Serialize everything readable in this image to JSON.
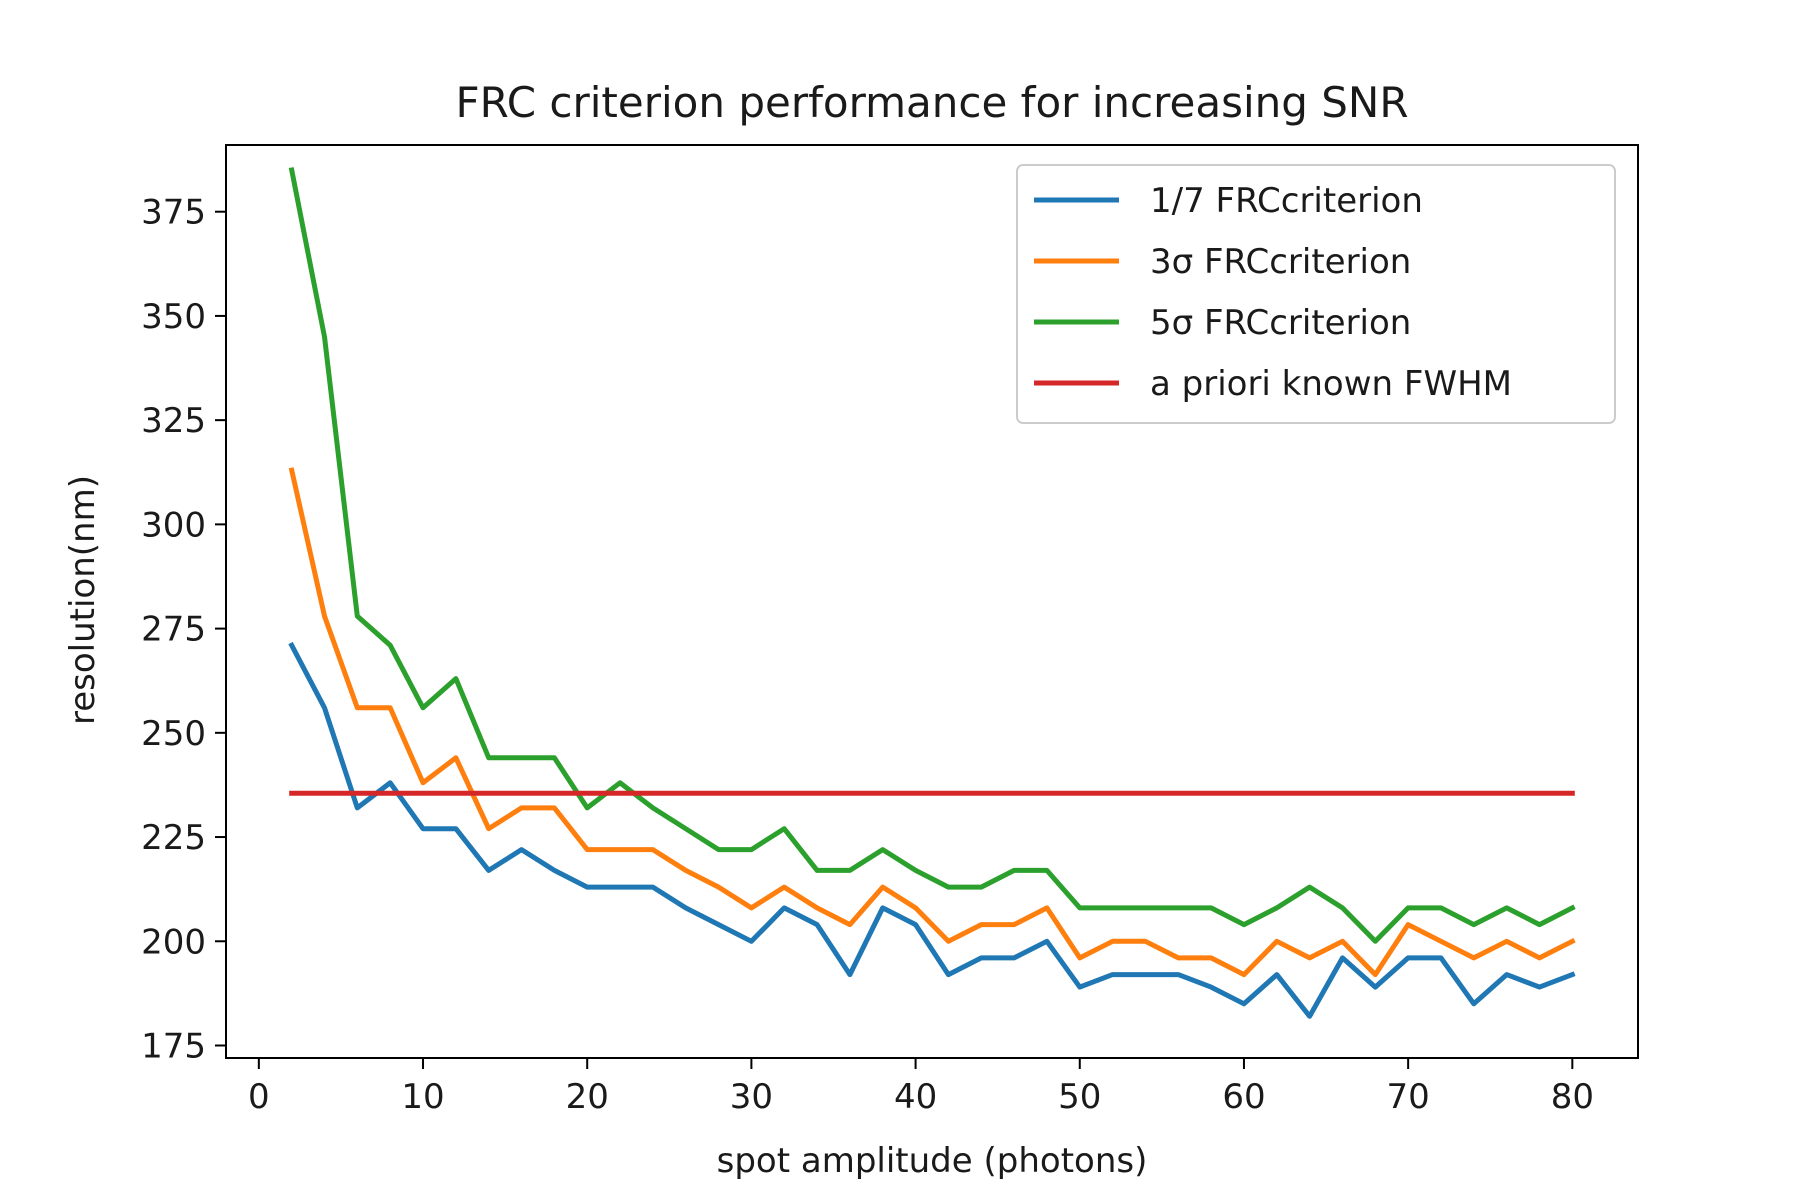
{
  "chart_data": {
    "type": "line",
    "title": "FRC criterion performance for increasing SNR",
    "xlabel": "spot amplitude (photons)",
    "ylabel": "resolution(nm)",
    "xlim": [
      -2,
      84
    ],
    "ylim": [
      172,
      391
    ],
    "xticks": [
      0,
      10,
      20,
      30,
      40,
      50,
      60,
      70,
      80
    ],
    "yticks": [
      175,
      200,
      225,
      250,
      275,
      300,
      325,
      350,
      375
    ],
    "grid": false,
    "legend_position": "top-right",
    "x": [
      2,
      4,
      6,
      8,
      10,
      12,
      14,
      16,
      18,
      20,
      22,
      24,
      26,
      28,
      30,
      32,
      34,
      36,
      38,
      40,
      42,
      44,
      46,
      48,
      50,
      52,
      54,
      56,
      58,
      60,
      62,
      64,
      66,
      68,
      70,
      72,
      74,
      76,
      78,
      80
    ],
    "series": [
      {
        "name": "1/7 FRCcriterion",
        "color": "#1f77b4",
        "values": [
          271,
          256,
          232,
          238,
          227,
          227,
          217,
          222,
          217,
          213,
          213,
          213,
          208,
          204,
          200,
          208,
          204,
          192,
          208,
          204,
          192,
          196,
          196,
          200,
          189,
          192,
          192,
          192,
          189,
          185,
          192,
          182,
          196,
          189,
          196,
          196,
          185,
          192,
          189,
          192
        ]
      },
      {
        "name": "3σ FRCcriterion",
        "color": "#ff7f0e",
        "values": [
          313,
          278,
          256,
          256,
          238,
          244,
          227,
          232,
          232,
          222,
          222,
          222,
          217,
          213,
          208,
          213,
          208,
          204,
          213,
          208,
          200,
          204,
          204,
          208,
          196,
          200,
          200,
          196,
          196,
          192,
          200,
          196,
          200,
          192,
          204,
          200,
          196,
          200,
          196,
          200
        ]
      },
      {
        "name": "5σ FRCcriterion",
        "color": "#2ca02c",
        "values": [
          385,
          345,
          278,
          271,
          256,
          263,
          244,
          244,
          244,
          232,
          238,
          232,
          227,
          222,
          222,
          227,
          217,
          217,
          222,
          217,
          213,
          213,
          217,
          217,
          208,
          208,
          208,
          208,
          208,
          204,
          208,
          213,
          208,
          200,
          208,
          208,
          204,
          208,
          204,
          208
        ]
      },
      {
        "name": "a priori known FWHM",
        "color": "#d62728",
        "values": [
          235.5,
          235.5,
          235.5,
          235.5,
          235.5,
          235.5,
          235.5,
          235.5,
          235.5,
          235.5,
          235.5,
          235.5,
          235.5,
          235.5,
          235.5,
          235.5,
          235.5,
          235.5,
          235.5,
          235.5,
          235.5,
          235.5,
          235.5,
          235.5,
          235.5,
          235.5,
          235.5,
          235.5,
          235.5,
          235.5,
          235.5,
          235.5,
          235.5,
          235.5,
          235.5,
          235.5,
          235.5,
          235.5,
          235.5,
          235.5
        ]
      }
    ]
  }
}
